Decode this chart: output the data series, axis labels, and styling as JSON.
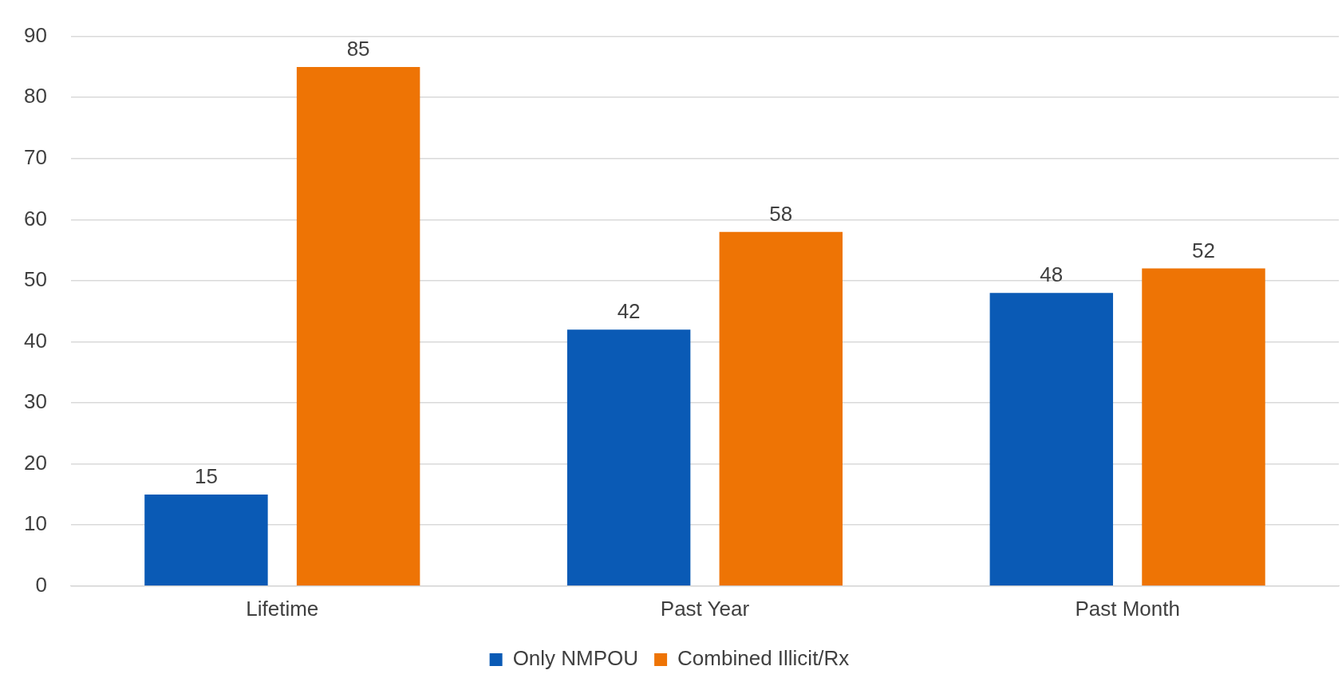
{
  "chart_data": {
    "type": "bar",
    "categories": [
      "Lifetime",
      "Past Year",
      "Past Month"
    ],
    "series": [
      {
        "name": "Only NMPOU",
        "color": "#0a5ab5",
        "values": [
          15,
          42,
          48
        ]
      },
      {
        "name": "Combined Illicit/Rx",
        "color": "#ee7405",
        "values": [
          85,
          58,
          52
        ]
      }
    ],
    "ylim": [
      0,
      90
    ],
    "yticks": [
      0,
      10,
      20,
      30,
      40,
      50,
      60,
      70,
      80,
      90
    ],
    "grid": "y",
    "legend": "bottom",
    "data_labels": true
  }
}
